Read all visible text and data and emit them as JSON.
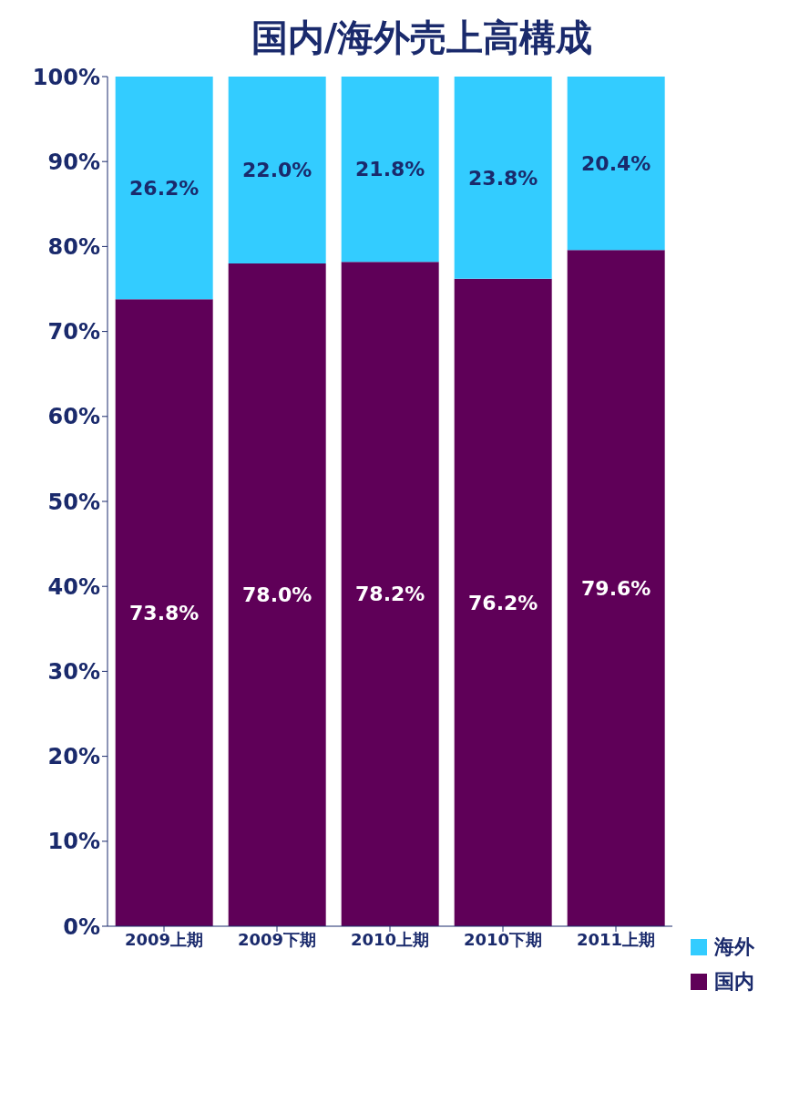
{
  "chart_data": {
    "type": "bar",
    "title": "国内/海外売上高構成",
    "stacked": true,
    "legend": "bottom right",
    "grid": false,
    "categories": [
      "2009上期",
      "2009下期",
      "2010上期",
      "2010下期",
      "2011上期"
    ],
    "ylim": [
      0,
      100
    ],
    "yticks": [
      {
        "value": 0,
        "label": "0%"
      },
      {
        "value": 10,
        "label": "10%"
      },
      {
        "value": 20,
        "label": "20%"
      },
      {
        "value": 30,
        "label": "30%"
      },
      {
        "value": 40,
        "label": "40%"
      },
      {
        "value": 50,
        "label": "50%"
      },
      {
        "value": 60,
        "label": "60%"
      },
      {
        "value": 70,
        "label": "70%"
      },
      {
        "value": 80,
        "label": "80%"
      },
      {
        "value": 90,
        "label": "90%"
      },
      {
        "value": 100,
        "label": "100%"
      }
    ],
    "series": [
      {
        "name": "国内",
        "color": "#5f0058",
        "values": [
          73.8,
          78.0,
          78.2,
          76.2,
          79.6
        ],
        "value_labels": [
          "73.8%",
          "78.0%",
          "78.2%",
          "76.2%",
          "79.6%"
        ]
      },
      {
        "name": "海外",
        "color": "#33ccff",
        "values": [
          26.2,
          22.0,
          21.8,
          23.8,
          20.4
        ],
        "value_labels": [
          "26.2%",
          "22.0%",
          "21.8%",
          "23.8%",
          "20.4%"
        ]
      }
    ]
  }
}
